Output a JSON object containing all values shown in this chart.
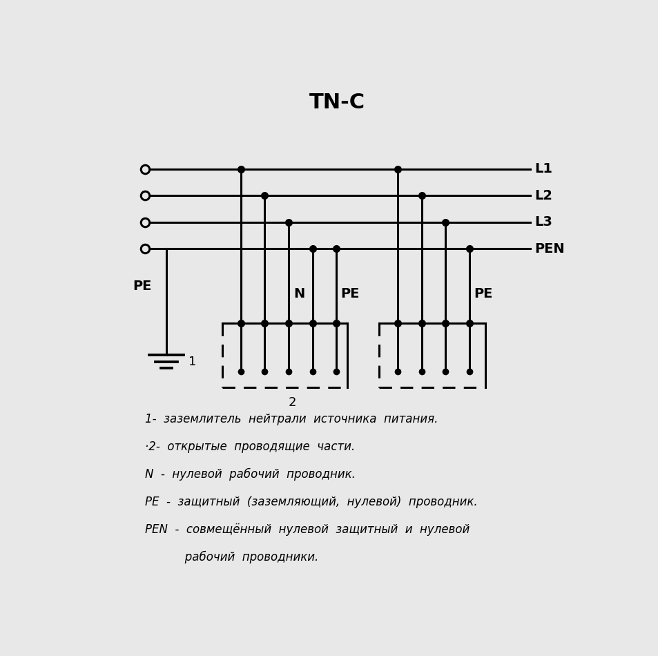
{
  "title": "TN-C",
  "background_color": "#e8e8e8",
  "line_color": "#000000",
  "line_width": 2.2,
  "dot_size": 8,
  "legend_lines": [
    "1-  заземлитель  нейтрали  источника  питания.",
    "·2-  открытые  проводящие  части.",
    "N  -  нулевой  рабочий  проводник.",
    "PE  -  защитный  (заземляющий,  нулевой)  проводник.",
    "PEN  -  совмещённый  нулевой  защитный  и  нулевой",
    "           рабочий  проводники."
  ],
  "bus_labels": [
    "L1",
    "L2",
    "L3",
    "PEN"
  ],
  "label1": "1",
  "box1_label": "2"
}
